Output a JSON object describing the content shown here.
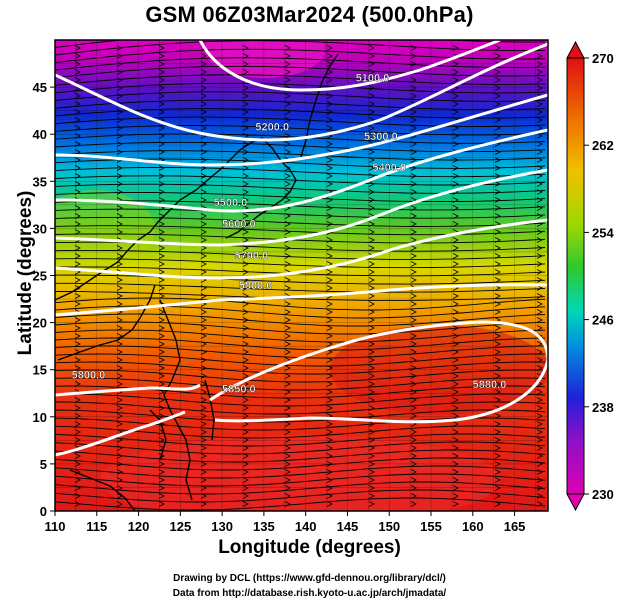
{
  "title": "GSM 06Z03Mar2024 (500.0hPa)",
  "xlabel": "Longitude (degrees)",
  "ylabel": "Latitude  (degrees)",
  "x_ticks": [
    "110",
    "115",
    "120",
    "125",
    "130",
    "135",
    "140",
    "145",
    "150",
    "155",
    "160",
    "165"
  ],
  "y_ticks": [
    "0",
    "5",
    "10",
    "15",
    "20",
    "25",
    "30",
    "35",
    "40",
    "45"
  ],
  "colorbar": {
    "ticks": [
      "230",
      "238",
      "246",
      "254",
      "262",
      "270"
    ],
    "min": 230,
    "max": 270,
    "colors": [
      "#e000b0",
      "#7010c0",
      "#1028d8",
      "#0090e0",
      "#00d8b0",
      "#30c830",
      "#a8d800",
      "#f0c800",
      "#f07000",
      "#e01010"
    ]
  },
  "contour_labels": [
    {
      "text": "5100.0",
      "lon": 148,
      "lat": 46
    },
    {
      "text": "5200.0",
      "lon": 136,
      "lat": 40.8
    },
    {
      "text": "5300.0",
      "lon": 149,
      "lat": 39.8
    },
    {
      "text": "5400.0",
      "lon": 150,
      "lat": 36.5
    },
    {
      "text": "5500.0",
      "lon": 131,
      "lat": 32.8
    },
    {
      "text": "5600.0",
      "lon": 132,
      "lat": 30.5
    },
    {
      "text": "5700.0",
      "lon": 133.5,
      "lat": 27.2
    },
    {
      "text": "5800.0",
      "lon": 134,
      "lat": 24.0
    },
    {
      "text": "5800.0",
      "lon": 114,
      "lat": 14.5
    },
    {
      "text": "5850.0",
      "lon": 132,
      "lat": 13.0
    },
    {
      "text": "5880.0",
      "lon": 162,
      "lat": 13.5
    }
  ],
  "credits": {
    "line1": "Drawing by DCL (https://www.gfd-dennou.org/library/dcl/)",
    "line2": "Data from http://database.rish.kyoto-u.ac.jp/arch/jmadata/"
  }
}
